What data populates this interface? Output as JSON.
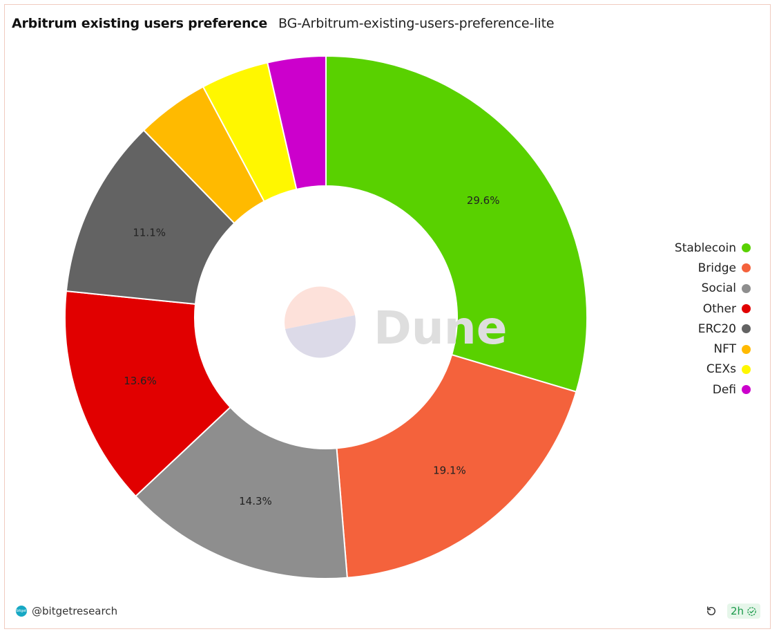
{
  "header": {
    "title": "Arbitrum existing users preference",
    "subtitle": "BG-Arbitrum-existing-users-preference-lite"
  },
  "watermark": {
    "text": "Dune"
  },
  "footer": {
    "author": "@bitgetresearch",
    "age": "2h",
    "avatar_text": "bitget"
  },
  "icons": {
    "refresh": "refresh-icon",
    "check": "check-circle-icon"
  },
  "chart_data": {
    "type": "pie",
    "donut": true,
    "legend_position": "right",
    "categories": [
      "Stablecoin",
      "Bridge",
      "Social",
      "Other",
      "ERC20",
      "NFT",
      "CEXs",
      "Defi"
    ],
    "values": [
      29.6,
      19.1,
      14.3,
      13.6,
      11.1,
      4.5,
      4.2,
      3.6
    ],
    "labels": [
      "29.6%",
      "19.1%",
      "14.3%",
      "13.6%",
      "11.1%",
      "",
      "",
      ""
    ],
    "colors": [
      "#59d100",
      "#f4623c",
      "#8e8e8e",
      "#e10000",
      "#636363",
      "#ffba00",
      "#fff700",
      "#cc00cc"
    ]
  }
}
